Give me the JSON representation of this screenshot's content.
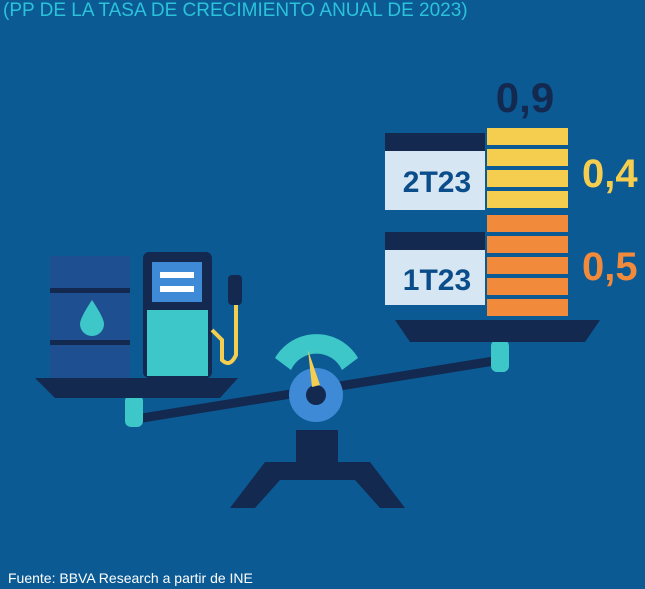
{
  "subtitle": "(PP DE LA TASA DE CRECIMIENTO ANUAL DE 2023)",
  "total": "0,9",
  "quarters": [
    {
      "label": "2T23",
      "value": "0,4"
    },
    {
      "label": "1T23",
      "value": "0,5"
    }
  ],
  "source": "Fuente: BBVA Research a partir de INE"
}
